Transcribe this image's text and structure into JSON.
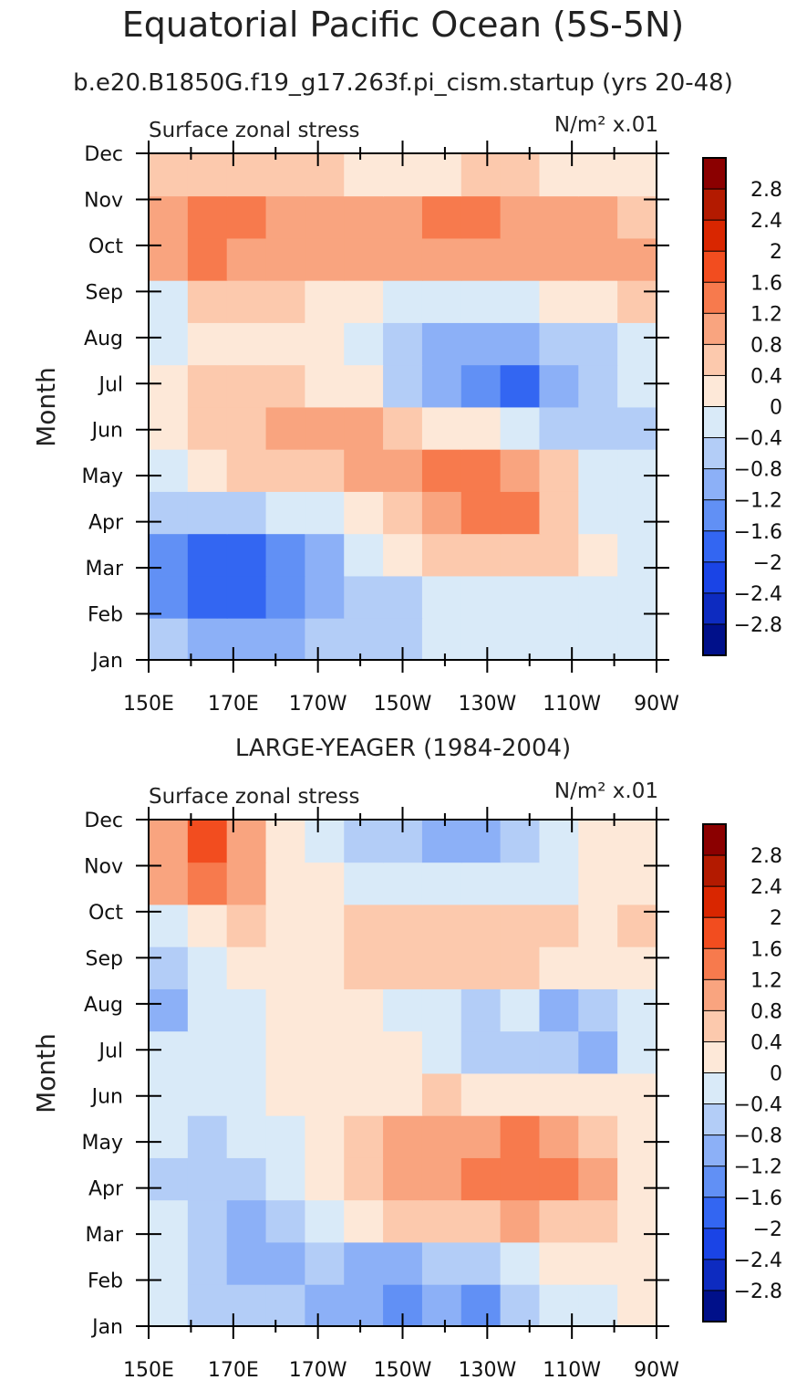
{
  "header": {
    "title": "Equatorial Pacific Ocean (5S-5N)",
    "subtitle": "b.e20.B1850G.f19_g17.263f.pi_cism.startup (yrs 20-48)"
  },
  "palette": [
    "#8b0000",
    "#b31a00",
    "#d92600",
    "#f24d1f",
    "#f77a4d",
    "#f9a47f",
    "#fcc9ad",
    "#fde8d8",
    "#d9eaf8",
    "#b3cdf7",
    "#8cb0f7",
    "#6190f5",
    "#3366f2",
    "#1a44e6",
    "#0d2bc0",
    "#00108a"
  ],
  "colorbar": {
    "levels": [
      "2.8",
      "2.4",
      "2",
      "1.6",
      "1.2",
      "0.8",
      "0.4",
      "0",
      "−0.4",
      "−0.8",
      "−1.2",
      "−1.6",
      "−2",
      "−2.4",
      "−2.8"
    ]
  },
  "panels": [
    {
      "heading": "",
      "label_left": "Surface zonal stress",
      "label_right": "N/m² x.01",
      "ylabel": "Month"
    },
    {
      "heading": "LARGE-YEAGER (1984-2004)",
      "label_left": "Surface zonal stress",
      "label_right": "N/m² x.01",
      "ylabel": "Month"
    }
  ],
  "chart_data": [
    {
      "type": "heatmap",
      "title": "Surface zonal stress",
      "units": "N/m² x.01",
      "xlabel": "",
      "ylabel": "Month",
      "x": [
        150,
        160,
        170,
        180,
        190,
        200,
        210,
        220,
        230,
        240,
        250,
        260,
        270
      ],
      "x_tick_values": [
        150,
        170,
        190,
        210,
        230,
        250,
        270
      ],
      "x_tick_labels": [
        "150E",
        "170E",
        "170W",
        "150W",
        "130W",
        "110W",
        "90W"
      ],
      "y": [
        "Jan",
        "Feb",
        "Mar",
        "Apr",
        "May",
        "Jun",
        "Jul",
        "Aug",
        "Sep",
        "Oct",
        "Nov",
        "Dec"
      ],
      "xlim": [
        150,
        270
      ],
      "values": [
        [
          -0.8,
          -1.2,
          -1.2,
          -1.2,
          -0.8,
          -0.8,
          -0.6,
          -0.4,
          -0.4,
          -0.4,
          -0.4,
          -0.4,
          -0.4
        ],
        [
          -1.4,
          -2.0,
          -2.0,
          -1.6,
          -1.2,
          -0.8,
          -0.8,
          -0.4,
          -0.2,
          -0.2,
          -0.2,
          -0.4,
          -0.4
        ],
        [
          -1.6,
          -2.0,
          -2.0,
          -1.6,
          -1.2,
          -0.4,
          0.2,
          0.4,
          0.6,
          0.6,
          0.4,
          0.0,
          -0.2
        ],
        [
          -0.8,
          -0.8,
          -0.6,
          -0.4,
          -0.2,
          0.2,
          0.6,
          1.0,
          1.2,
          1.4,
          0.6,
          -0.1,
          -0.4
        ],
        [
          -0.2,
          0.2,
          0.4,
          0.4,
          0.6,
          0.8,
          1.0,
          1.2,
          1.2,
          1.0,
          0.4,
          -0.2,
          -0.4
        ],
        [
          0.2,
          0.6,
          0.6,
          0.8,
          0.8,
          0.8,
          0.4,
          0.2,
          0.0,
          -0.2,
          -0.6,
          -0.6,
          -0.6
        ],
        [
          0.2,
          0.4,
          0.4,
          0.4,
          0.2,
          0.0,
          -0.8,
          -1.2,
          -1.6,
          -1.8,
          -1.2,
          -0.8,
          -0.4
        ],
        [
          -0.2,
          0.2,
          0.2,
          0.2,
          0.0,
          -0.4,
          -0.8,
          -1.2,
          -1.2,
          -1.2,
          -0.8,
          -0.6,
          -0.2
        ],
        [
          -0.4,
          0.4,
          0.4,
          0.4,
          0.2,
          0.0,
          -0.2,
          -0.4,
          -0.4,
          -0.2,
          0.0,
          0.2,
          0.4
        ],
        [
          0.8,
          1.2,
          1.0,
          0.8,
          0.8,
          0.8,
          0.8,
          1.0,
          1.0,
          1.0,
          0.8,
          0.8,
          1.0
        ],
        [
          1.0,
          1.2,
          1.2,
          1.0,
          0.8,
          0.8,
          1.0,
          1.2,
          1.2,
          1.0,
          0.8,
          0.8,
          0.6
        ],
        [
          0.6,
          0.4,
          0.4,
          0.6,
          0.4,
          0.2,
          0.2,
          0.2,
          0.4,
          0.4,
          0.2,
          0.2,
          0.0
        ]
      ],
      "levels": [
        -2.8,
        -2.4,
        -2.0,
        -1.6,
        -1.2,
        -0.8,
        -0.4,
        0,
        0.4,
        0.8,
        1.2,
        1.6,
        2.0,
        2.4,
        2.8
      ]
    },
    {
      "type": "heatmap",
      "title": "Surface zonal stress",
      "units": "N/m² x.01",
      "xlabel": "",
      "ylabel": "Month",
      "x": [
        150,
        160,
        170,
        180,
        190,
        200,
        210,
        220,
        230,
        240,
        250,
        260,
        270
      ],
      "x_tick_values": [
        150,
        170,
        190,
        210,
        230,
        250,
        270
      ],
      "x_tick_labels": [
        "150E",
        "170E",
        "170W",
        "150W",
        "130W",
        "110W",
        "90W"
      ],
      "y": [
        "Jan",
        "Feb",
        "Mar",
        "Apr",
        "May",
        "Jun",
        "Jul",
        "Aug",
        "Sep",
        "Oct",
        "Nov",
        "Dec"
      ],
      "xlim": [
        150,
        270
      ],
      "values": [
        [
          -0.2,
          -0.6,
          -0.8,
          -0.6,
          -1.2,
          -1.2,
          -1.4,
          -1.2,
          -1.4,
          -0.8,
          -0.4,
          -0.2,
          0.2
        ],
        [
          -0.4,
          -0.8,
          -1.2,
          -1.0,
          -0.8,
          -1.0,
          -1.2,
          -0.8,
          -0.8,
          -0.4,
          0.0,
          0.2,
          0.2
        ],
        [
          -0.4,
          -0.8,
          -1.2,
          -0.8,
          -0.4,
          0.0,
          0.4,
          0.6,
          0.6,
          0.8,
          0.6,
          0.4,
          0.2
        ],
        [
          -0.6,
          -0.8,
          -0.8,
          -0.4,
          0.0,
          0.6,
          0.8,
          1.0,
          1.2,
          1.4,
          1.2,
          0.8,
          0.2
        ],
        [
          -0.4,
          -0.6,
          -0.4,
          -0.2,
          0.2,
          0.6,
          0.8,
          1.0,
          1.0,
          1.2,
          1.0,
          0.6,
          0.2
        ],
        [
          -0.2,
          -0.2,
          -0.2,
          0.0,
          0.2,
          0.2,
          0.2,
          0.4,
          0.2,
          0.2,
          0.2,
          0.2,
          0.2
        ],
        [
          -0.4,
          -0.2,
          -0.2,
          0.0,
          0.2,
          0.2,
          0.0,
          -0.4,
          -0.6,
          -0.6,
          -0.8,
          -1.0,
          -0.2
        ],
        [
          -1.0,
          -0.4,
          -0.2,
          0.0,
          0.2,
          0.0,
          -0.2,
          -0.2,
          -0.6,
          -0.2,
          -1.0,
          -0.8,
          -0.2
        ],
        [
          -0.6,
          -0.2,
          0.0,
          0.2,
          0.2,
          0.6,
          0.6,
          0.6,
          0.6,
          0.4,
          0.2,
          0.0,
          0.2
        ],
        [
          -0.2,
          0.2,
          0.4,
          0.2,
          0.0,
          0.4,
          0.6,
          0.6,
          0.6,
          0.6,
          0.4,
          0.2,
          0.6
        ],
        [
          1.0,
          1.2,
          0.8,
          0.2,
          0.0,
          -0.2,
          -0.2,
          -0.4,
          -0.4,
          -0.2,
          -0.2,
          0.0,
          0.2
        ],
        [
          1.0,
          1.6,
          0.8,
          0.2,
          -0.2,
          -0.6,
          -0.8,
          -1.2,
          -1.0,
          -0.8,
          -0.4,
          0.0,
          0.2
        ]
      ],
      "levels": [
        -2.8,
        -2.4,
        -2.0,
        -1.6,
        -1.2,
        -0.8,
        -0.4,
        0,
        0.4,
        0.8,
        1.2,
        1.6,
        2.0,
        2.4,
        2.8
      ]
    }
  ]
}
